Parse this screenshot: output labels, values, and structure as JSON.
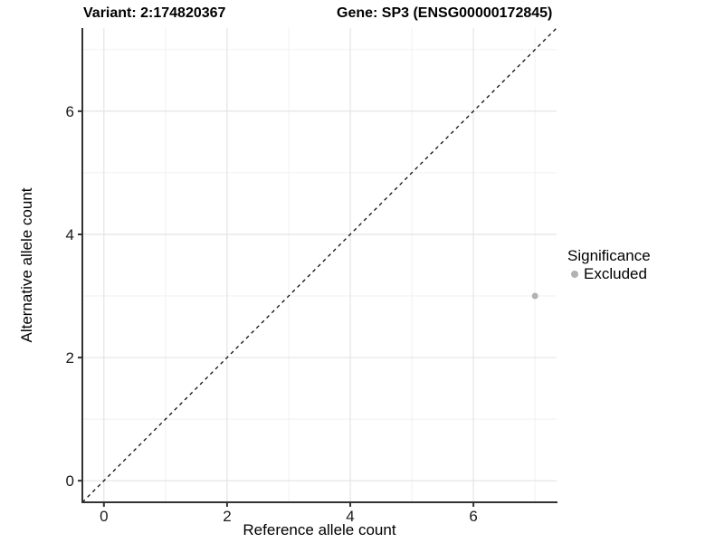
{
  "titles": {
    "left": "Variant: 2:174820367",
    "right": "Gene: SP3 (ENSG00000172845)"
  },
  "legend": {
    "title": "Significance",
    "position": "right",
    "items": [
      {
        "label": "Excluded",
        "color": "#b2b2b2"
      }
    ]
  },
  "chart_data": {
    "type": "scatter",
    "title": "Variant: 2:174820367  /  Gene: SP3 (ENSG00000172845)",
    "xlabel": "Reference allele count",
    "ylabel": "Alternative allele count",
    "xlim": [
      -0.35,
      7.35
    ],
    "ylim": [
      -0.35,
      7.35
    ],
    "aspect": "equal",
    "major_ticks": [
      0,
      2,
      4,
      6
    ],
    "minor_gridlines": [
      1,
      3,
      5,
      7
    ],
    "grid": true,
    "points": [
      {
        "x": 7,
        "y": 3,
        "series": "Excluded"
      }
    ],
    "identity_line": {
      "type": "abline",
      "slope": 1,
      "intercept": 0,
      "style": "dashed"
    },
    "legend_position": "right",
    "colors": {
      "point": "#b2b2b2",
      "grid_major": "#e4e4e4",
      "grid_minor": "#f1f1f1",
      "axis_line": "#333333",
      "tick_label": "#1a1a1a",
      "dashed_line": "#0d0d0d",
      "background": "#ffffff"
    }
  }
}
